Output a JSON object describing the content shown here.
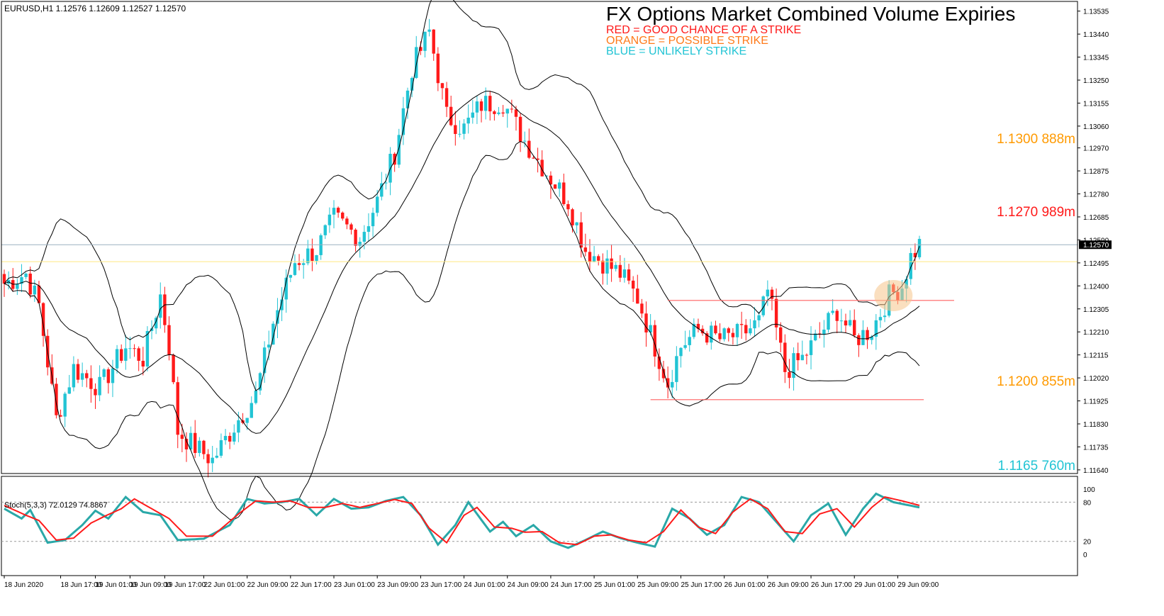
{
  "header": {
    "symbol_info": "EURUSD,H1  1.12576 1.12609 1.12527 1.12570"
  },
  "title": "FX Options Market Combined Volume Expiries",
  "legend": [
    {
      "text": "RED = GOOD CHANCE OF A STRIKE",
      "color": "#ff1a1a"
    },
    {
      "text": "ORANGE = POSSIBLE STRIKE",
      "color": "#ff7a1a"
    },
    {
      "text": "BLUE = UNLIKELY STRIKE",
      "color": "#22c4d4"
    }
  ],
  "annotations": [
    {
      "text": "1.1300 888m",
      "price": 1.13,
      "color": "#ff9a00"
    },
    {
      "text": "1.1270 989m",
      "price": 1.127,
      "color": "#ff1a1a"
    },
    {
      "text": "1.1200 855m",
      "price": 1.12,
      "color": "#ff9a00"
    },
    {
      "text": "1.1165 760m",
      "price": 1.1165,
      "color": "#22c4d4"
    }
  ],
  "stoch_label": "Stoch(5,3,3) 72.0129 74.8867",
  "colors": {
    "bull": "#22c4d4",
    "bear": "#ff1a1a",
    "band": "#000000",
    "hline": "#ffe680",
    "current": "#9bb0c0",
    "range": "#ff6060",
    "stoch_main": "#2aa8a8",
    "stoch_signal": "#ff1a1a"
  },
  "chart_data": {
    "type": "candlestick",
    "symbol": "EURUSD",
    "timeframe": "H1",
    "price_ticks": [
      "1.13535",
      "1.13440",
      "1.13345",
      "1.13250",
      "1.13155",
      "1.13060",
      "1.12970",
      "1.12875",
      "1.12780",
      "1.12685",
      "1.12590",
      "1.12495",
      "1.12400",
      "1.12305",
      "1.12210",
      "1.12115",
      "1.12020",
      "1.11925",
      "1.11830",
      "1.11735",
      "1.11640"
    ],
    "price_range": [
      1.11625,
      1.13575
    ],
    "current_price": "1.12570",
    "horizontal_lines": [
      {
        "price": 1.125,
        "color": "#ffe680"
      },
      {
        "price": 1.1257,
        "color": "#9bb0c0"
      }
    ],
    "range_lines": [
      {
        "price": 1.1234,
        "from_candle": 153,
        "to_candle": 219
      },
      {
        "price": 1.1193,
        "from_candle": 149,
        "to_candle": 212
      }
    ],
    "highlight": {
      "candle": 205,
      "price": 1.1236
    },
    "x_ticks": [
      {
        "label": "18 Jun 2020",
        "candle": 0
      },
      {
        "label": "18 Jun 17:00",
        "candle": 13
      },
      {
        "label": "19 Jun 01:00",
        "candle": 21
      },
      {
        "label": "19 Jun 09:00",
        "candle": 29
      },
      {
        "label": "19 Jun 17:00",
        "candle": 37
      },
      {
        "label": "22 Jun 01:00",
        "candle": 46
      },
      {
        "label": "22 Jun 09:00",
        "candle": 56
      },
      {
        "label": "22 Jun 17:00",
        "candle": 66
      },
      {
        "label": "23 Jun 01:00",
        "candle": 76
      },
      {
        "label": "23 Jun 09:00",
        "candle": 86
      },
      {
        "label": "23 Jun 17:00",
        "candle": 96
      },
      {
        "label": "24 Jun 01:00",
        "candle": 106
      },
      {
        "label": "24 Jun 09:00",
        "candle": 116
      },
      {
        "label": "24 Jun 17:00",
        "candle": 126
      },
      {
        "label": "25 Jun 01:00",
        "candle": 136
      },
      {
        "label": "25 Jun 09:00",
        "candle": 146
      },
      {
        "label": "25 Jun 17:00",
        "candle": 156
      },
      {
        "label": "26 Jun 01:00",
        "candle": 166
      },
      {
        "label": "26 Jun 09:00",
        "candle": 176
      },
      {
        "label": "26 Jun 17:00",
        "candle": 186
      },
      {
        "label": "29 Jun 01:00",
        "candle": 196
      },
      {
        "label": "29 Jun 09:00",
        "candle": 206
      }
    ],
    "candle_count": 212,
    "close_series": [
      {
        "candle": 0,
        "price": 1.1241
      },
      {
        "candle": 5,
        "price": 1.1245
      },
      {
        "candle": 8,
        "price": 1.1232
      },
      {
        "candle": 12,
        "price": 1.1185
      },
      {
        "candle": 16,
        "price": 1.1206
      },
      {
        "candle": 22,
        "price": 1.1198
      },
      {
        "candle": 28,
        "price": 1.1215
      },
      {
        "candle": 32,
        "price": 1.121
      },
      {
        "candle": 36,
        "price": 1.1236
      },
      {
        "candle": 38,
        "price": 1.1215
      },
      {
        "candle": 40,
        "price": 1.118
      },
      {
        "candle": 43,
        "price": 1.1175
      },
      {
        "candle": 48,
        "price": 1.1168
      },
      {
        "candle": 54,
        "price": 1.1185
      },
      {
        "candle": 58,
        "price": 1.1195
      },
      {
        "candle": 62,
        "price": 1.1225
      },
      {
        "candle": 67,
        "price": 1.125
      },
      {
        "candle": 72,
        "price": 1.1255
      },
      {
        "candle": 76,
        "price": 1.1268
      },
      {
        "candle": 82,
        "price": 1.126
      },
      {
        "candle": 86,
        "price": 1.1275
      },
      {
        "candle": 90,
        "price": 1.1295
      },
      {
        "candle": 94,
        "price": 1.133
      },
      {
        "candle": 98,
        "price": 1.1345
      },
      {
        "candle": 102,
        "price": 1.131
      },
      {
        "candle": 106,
        "price": 1.1305
      },
      {
        "candle": 110,
        "price": 1.1315
      },
      {
        "candle": 115,
        "price": 1.1316
      },
      {
        "candle": 120,
        "price": 1.13
      },
      {
        "candle": 125,
        "price": 1.1287
      },
      {
        "candle": 130,
        "price": 1.1275
      },
      {
        "candle": 134,
        "price": 1.1255
      },
      {
        "candle": 138,
        "price": 1.125
      },
      {
        "candle": 142,
        "price": 1.1245
      },
      {
        "candle": 146,
        "price": 1.1235
      },
      {
        "candle": 150,
        "price": 1.1215
      },
      {
        "candle": 153,
        "price": 1.12
      },
      {
        "candle": 156,
        "price": 1.1215
      },
      {
        "candle": 160,
        "price": 1.1222
      },
      {
        "candle": 165,
        "price": 1.1218
      },
      {
        "candle": 170,
        "price": 1.122
      },
      {
        "candle": 174,
        "price": 1.1225
      },
      {
        "candle": 176,
        "price": 1.1238
      },
      {
        "candle": 180,
        "price": 1.1205
      },
      {
        "candle": 184,
        "price": 1.121
      },
      {
        "candle": 188,
        "price": 1.122
      },
      {
        "candle": 192,
        "price": 1.123
      },
      {
        "candle": 196,
        "price": 1.1218
      },
      {
        "candle": 200,
        "price": 1.1222
      },
      {
        "candle": 204,
        "price": 1.1236
      },
      {
        "candle": 207,
        "price": 1.124
      },
      {
        "candle": 209,
        "price": 1.1252
      },
      {
        "candle": 211,
        "price": 1.1257
      }
    ],
    "stochastic": {
      "name": "Stoch(5,3,3)",
      "main": 72.0129,
      "signal": 74.8867,
      "levels": [
        80,
        20
      ],
      "range": [
        0,
        100
      ],
      "ticks": [
        "100",
        "80",
        "20",
        "0"
      ],
      "main_series": [
        {
          "candle": 0,
          "value": 70
        },
        {
          "candle": 4,
          "value": 55
        },
        {
          "candle": 6,
          "value": 68
        },
        {
          "candle": 10,
          "value": 18
        },
        {
          "candle": 14,
          "value": 22
        },
        {
          "candle": 18,
          "value": 45
        },
        {
          "candle": 21,
          "value": 67
        },
        {
          "candle": 24,
          "value": 55
        },
        {
          "candle": 28,
          "value": 88
        },
        {
          "candle": 32,
          "value": 65
        },
        {
          "candle": 36,
          "value": 60
        },
        {
          "candle": 40,
          "value": 22
        },
        {
          "candle": 46,
          "value": 24
        },
        {
          "candle": 52,
          "value": 45
        },
        {
          "candle": 56,
          "value": 85
        },
        {
          "candle": 60,
          "value": 78
        },
        {
          "candle": 64,
          "value": 80
        },
        {
          "candle": 68,
          "value": 85
        },
        {
          "candle": 72,
          "value": 60
        },
        {
          "candle": 76,
          "value": 85
        },
        {
          "candle": 80,
          "value": 70
        },
        {
          "candle": 84,
          "value": 72
        },
        {
          "candle": 88,
          "value": 82
        },
        {
          "candle": 92,
          "value": 88
        },
        {
          "candle": 96,
          "value": 60
        },
        {
          "candle": 100,
          "value": 15
        },
        {
          "candle": 104,
          "value": 45
        },
        {
          "candle": 107,
          "value": 80
        },
        {
          "candle": 112,
          "value": 35
        },
        {
          "candle": 115,
          "value": 50
        },
        {
          "candle": 118,
          "value": 28
        },
        {
          "candle": 122,
          "value": 45
        },
        {
          "candle": 126,
          "value": 20
        },
        {
          "candle": 130,
          "value": 10
        },
        {
          "candle": 134,
          "value": 22
        },
        {
          "candle": 138,
          "value": 35
        },
        {
          "candle": 142,
          "value": 25
        },
        {
          "candle": 146,
          "value": 18
        },
        {
          "candle": 150,
          "value": 12
        },
        {
          "candle": 154,
          "value": 70
        },
        {
          "candle": 158,
          "value": 55
        },
        {
          "candle": 162,
          "value": 30
        },
        {
          "candle": 166,
          "value": 45
        },
        {
          "candle": 170,
          "value": 88
        },
        {
          "candle": 174,
          "value": 80
        },
        {
          "candle": 178,
          "value": 50
        },
        {
          "candle": 182,
          "value": 20
        },
        {
          "candle": 186,
          "value": 60
        },
        {
          "candle": 190,
          "value": 78
        },
        {
          "candle": 194,
          "value": 30
        },
        {
          "candle": 198,
          "value": 70
        },
        {
          "candle": 201,
          "value": 93
        },
        {
          "candle": 205,
          "value": 80
        },
        {
          "candle": 211,
          "value": 72
        }
      ],
      "signal_series": [
        {
          "candle": 0,
          "value": 75
        },
        {
          "candle": 5,
          "value": 60
        },
        {
          "candle": 8,
          "value": 52
        },
        {
          "candle": 12,
          "value": 22
        },
        {
          "candle": 16,
          "value": 25
        },
        {
          "candle": 20,
          "value": 48
        },
        {
          "candle": 23,
          "value": 58
        },
        {
          "candle": 27,
          "value": 70
        },
        {
          "candle": 30,
          "value": 85
        },
        {
          "candle": 34,
          "value": 70
        },
        {
          "candle": 38,
          "value": 55
        },
        {
          "candle": 42,
          "value": 28
        },
        {
          "candle": 48,
          "value": 28
        },
        {
          "candle": 54,
          "value": 62
        },
        {
          "candle": 58,
          "value": 82
        },
        {
          "candle": 62,
          "value": 80
        },
        {
          "candle": 66,
          "value": 82
        },
        {
          "candle": 70,
          "value": 72
        },
        {
          "candle": 74,
          "value": 72
        },
        {
          "candle": 78,
          "value": 78
        },
        {
          "candle": 82,
          "value": 72
        },
        {
          "candle": 86,
          "value": 78
        },
        {
          "candle": 90,
          "value": 84
        },
        {
          "candle": 94,
          "value": 78
        },
        {
          "candle": 98,
          "value": 40
        },
        {
          "candle": 102,
          "value": 18
        },
        {
          "candle": 106,
          "value": 60
        },
        {
          "candle": 109,
          "value": 72
        },
        {
          "candle": 113,
          "value": 42
        },
        {
          "candle": 117,
          "value": 40
        },
        {
          "candle": 120,
          "value": 34
        },
        {
          "candle": 124,
          "value": 35
        },
        {
          "candle": 128,
          "value": 18
        },
        {
          "candle": 132,
          "value": 15
        },
        {
          "candle": 136,
          "value": 28
        },
        {
          "candle": 140,
          "value": 30
        },
        {
          "candle": 144,
          "value": 22
        },
        {
          "candle": 148,
          "value": 18
        },
        {
          "candle": 152,
          "value": 35
        },
        {
          "candle": 156,
          "value": 68
        },
        {
          "candle": 160,
          "value": 42
        },
        {
          "candle": 164,
          "value": 32
        },
        {
          "candle": 168,
          "value": 65
        },
        {
          "candle": 172,
          "value": 85
        },
        {
          "candle": 176,
          "value": 70
        },
        {
          "candle": 180,
          "value": 35
        },
        {
          "candle": 184,
          "value": 32
        },
        {
          "candle": 188,
          "value": 62
        },
        {
          "candle": 192,
          "value": 70
        },
        {
          "candle": 196,
          "value": 42
        },
        {
          "candle": 200,
          "value": 72
        },
        {
          "candle": 203,
          "value": 88
        },
        {
          "candle": 207,
          "value": 82
        },
        {
          "candle": 211,
          "value": 75
        }
      ]
    }
  }
}
